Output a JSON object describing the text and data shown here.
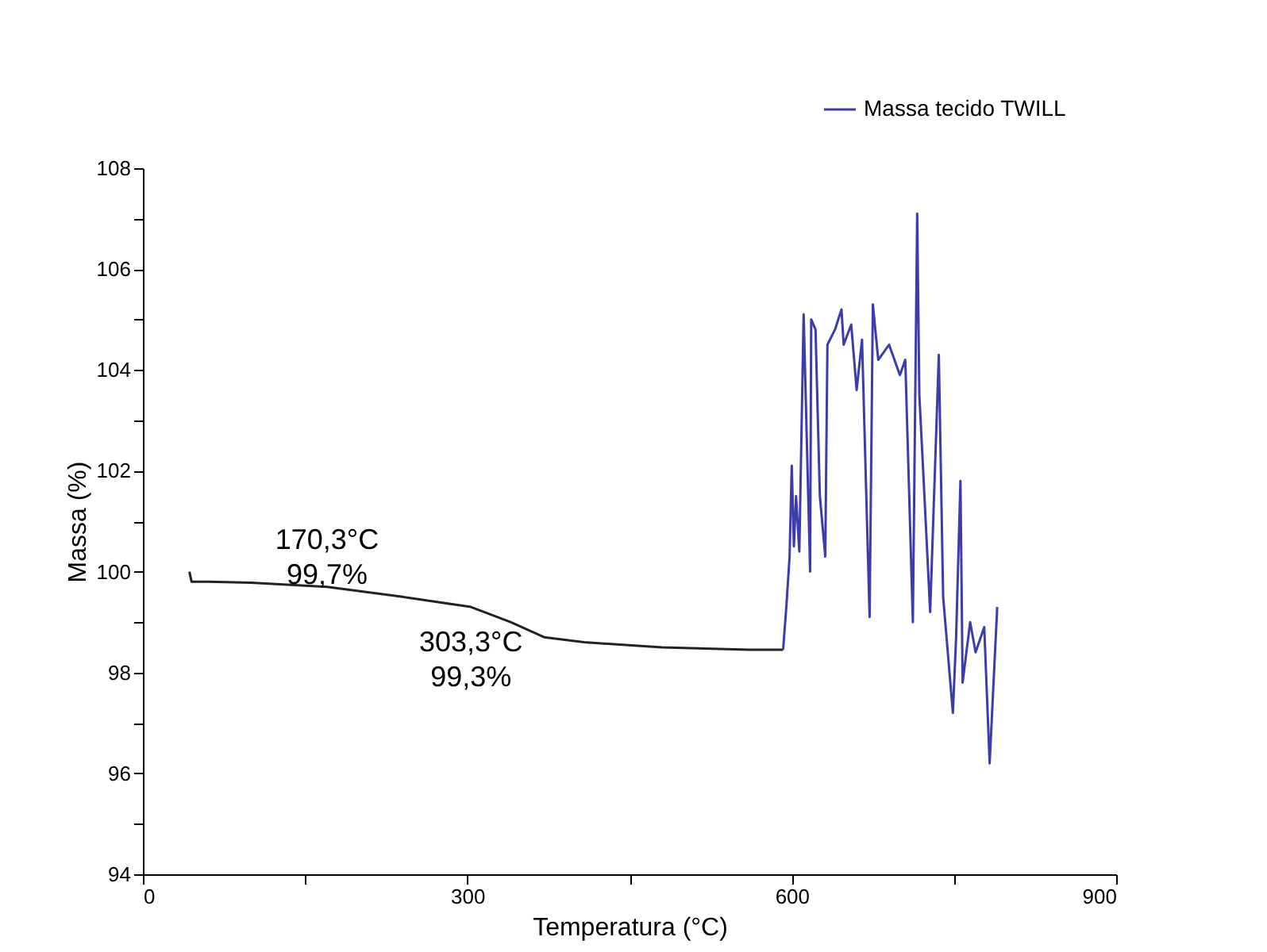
{
  "chart_data": {
    "type": "line",
    "xlabel": "Temperatura (°C)",
    "ylabel": "Massa (%)",
    "xlim": [
      0,
      900
    ],
    "ylim": [
      94,
      108
    ],
    "xticks": [
      0,
      {
        "value": 150,
        "label": null
      },
      300,
      {
        "value": 450,
        "label": null
      },
      600,
      {
        "value": 750,
        "label": null
      },
      900
    ],
    "yticks": [
      94,
      {
        "value": 95,
        "label": null
      },
      96,
      {
        "value": 97,
        "label": null
      },
      98,
      {
        "value": 99,
        "label": null
      },
      100,
      {
        "value": 101,
        "label": null
      },
      102,
      {
        "value": 103,
        "label": null
      },
      104,
      {
        "value": 105,
        "label": null
      },
      106,
      {
        "value": 107,
        "label": null
      },
      108
    ],
    "grid": false,
    "legend": "top right",
    "line_style": "solid",
    "series": [
      {
        "color": "#222222",
        "x": [
          43,
          45,
          60,
          100,
          170.3,
          240,
          303.3,
          340,
          371,
          408,
          480,
          560,
          592
        ],
        "values": [
          100.0,
          99.8,
          99.8,
          99.78,
          99.7,
          99.5,
          99.3,
          99.0,
          98.7,
          98.6,
          98.5,
          98.45,
          98.45
        ]
      },
      {
        "name": "Massa tecido TWILL",
        "color": "#3c3caa",
        "x": [
          592,
          595,
          598,
          600,
          602,
          604,
          607,
          611,
          617,
          618,
          622,
          626,
          631,
          633,
          640,
          646,
          648,
          655,
          660,
          665,
          672,
          675,
          680,
          690,
          700,
          705,
          712,
          716,
          718,
          722,
          728,
          736,
          740,
          749,
          752,
          756,
          758,
          765,
          770,
          778,
          783,
          790
        ],
        "values": [
          98.45,
          99.3,
          100.3,
          102.1,
          100.5,
          101.5,
          100.4,
          105.1,
          100.0,
          105.0,
          104.8,
          101.5,
          100.3,
          104.5,
          104.8,
          105.2,
          104.5,
          104.9,
          103.6,
          104.6,
          99.1,
          105.3,
          104.2,
          104.5,
          103.9,
          104.2,
          99.0,
          107.1,
          103.5,
          101.8,
          99.2,
          104.3,
          99.5,
          97.2,
          98.7,
          101.8,
          97.8,
          99.0,
          98.4,
          98.9,
          96.2,
          99.3
        ]
      }
    ],
    "annotations": [
      {
        "text": "170,3°C\n99,7%",
        "x": 170.3,
        "y": 99.7
      },
      {
        "text": "303,3°C\n99,3%",
        "x": 303.3,
        "y": 99.3
      }
    ]
  }
}
